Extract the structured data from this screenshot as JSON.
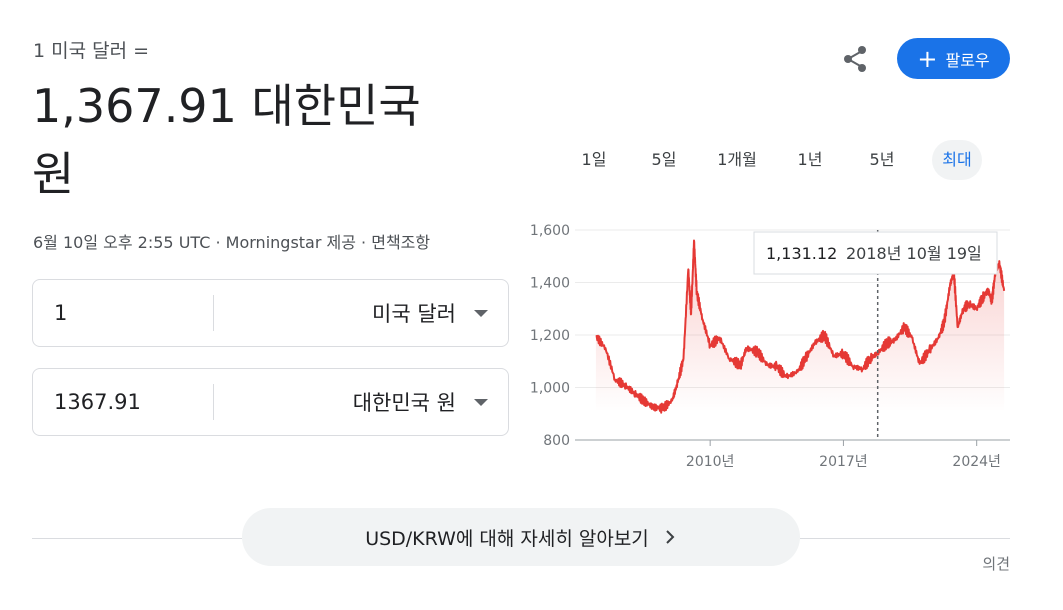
{
  "header": {
    "subtitle": "1 미국 달러 =",
    "result_line1": "1,367.91 대한민국",
    "result_line2": "원",
    "meta": "6월 10일 오후 2:55 UTC · Morningstar 제공 · 면책조항"
  },
  "actions": {
    "follow_label": "팔로우",
    "follow_icon": "plus-icon",
    "share_icon": "share-icon"
  },
  "converter": {
    "from_amount": "1",
    "from_currency": "미국 달러",
    "to_amount": "1367.91",
    "to_currency": "대한민국 원"
  },
  "ranges": [
    "1일",
    "5일",
    "1개월",
    "1년",
    "5년",
    "최대"
  ],
  "active_range": "최대",
  "tooltip": {
    "value": "1,131.12",
    "date": "2018년 10월 19일"
  },
  "colors": {
    "accent": "#1a73e8",
    "line": "#e53935"
  },
  "chart_data": {
    "type": "line",
    "x": [
      2004.0,
      2004.5,
      2005.0,
      2005.5,
      2006.0,
      2006.5,
      2007.0,
      2007.5,
      2008.0,
      2008.3,
      2008.6,
      2008.85,
      2009.0,
      2009.15,
      2009.3,
      2009.6,
      2010.0,
      2010.5,
      2011.0,
      2011.6,
      2011.9,
      2012.5,
      2013.0,
      2013.5,
      2014.0,
      2014.6,
      2015.0,
      2015.5,
      2016.0,
      2016.5,
      2017.0,
      2017.5,
      2018.0,
      2018.4,
      2018.8,
      2019.3,
      2019.7,
      2020.2,
      2020.6,
      2021.0,
      2021.5,
      2022.0,
      2022.3,
      2022.6,
      2022.8,
      2023.0,
      2023.3,
      2023.6,
      2024.0,
      2024.3,
      2024.6,
      2024.8,
      2025.0,
      2025.2,
      2025.44
    ],
    "series": [
      {
        "values": [
          1195,
          1150,
          1030,
          1010,
          980,
          950,
          925,
          920,
          950,
          1020,
          1110,
          1450,
          1280,
          1560,
          1360,
          1260,
          1160,
          1190,
          1110,
          1085,
          1150,
          1135,
          1085,
          1080,
          1040,
          1060,
          1110,
          1170,
          1200,
          1120,
          1130,
          1080,
          1070,
          1110,
          1131,
          1170,
          1180,
          1230,
          1190,
          1090,
          1140,
          1190,
          1250,
          1390,
          1440,
          1230,
          1300,
          1320,
          1300,
          1340,
          1370,
          1330,
          1450,
          1470,
          1368
        ]
      }
    ],
    "xticks": [
      "2010년",
      "2017년",
      "2024년"
    ],
    "yticks": [
      "800",
      "1,000",
      "1,200",
      "1,400",
      "1,600"
    ],
    "ylim": [
      800,
      1600
    ],
    "grid": true
  },
  "footer": {
    "learn_more": "USD/KRW에 대해 자세히 알아보기",
    "feedback": "의견"
  }
}
